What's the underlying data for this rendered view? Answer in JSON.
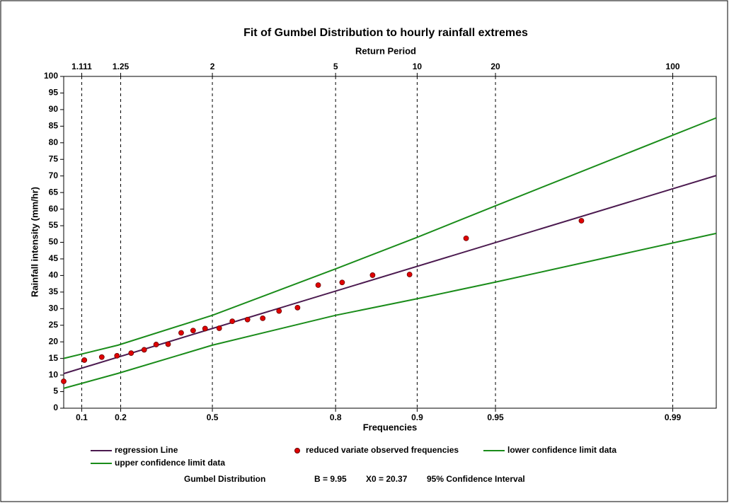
{
  "chart_data": {
    "type": "line",
    "title": "Fit of Gumbel Distribution to hourly rainfall extremes",
    "x2_label": "Return Period",
    "x_label": "Frequencies",
    "y_label": "Rainfall intensity (mm/hr)",
    "xlim": [
      -1,
      5
    ],
    "ylim": [
      0,
      100
    ],
    "yticks": [
      0,
      5,
      10,
      15,
      20,
      25,
      30,
      35,
      40,
      45,
      50,
      55,
      60,
      65,
      70,
      75,
      80,
      85,
      90,
      95,
      100
    ],
    "xticks": [
      {
        "value": -0.834,
        "label": "0.1"
      },
      {
        "value": -0.476,
        "label": "0.2"
      },
      {
        "value": 0.367,
        "label": "0.5"
      },
      {
        "value": 1.5,
        "label": "0.8"
      },
      {
        "value": 2.25,
        "label": "0.9"
      },
      {
        "value": 2.97,
        "label": "0.95"
      },
      {
        "value": 4.6,
        "label": "0.99"
      }
    ],
    "x2ticks": [
      {
        "value": -0.834,
        "label": "1.111"
      },
      {
        "value": -0.476,
        "label": "1.25"
      },
      {
        "value": 0.367,
        "label": "2"
      },
      {
        "value": 1.5,
        "label": "5"
      },
      {
        "value": 2.25,
        "label": "10"
      },
      {
        "value": 2.97,
        "label": "20"
      },
      {
        "value": 4.6,
        "label": "100"
      }
    ],
    "grid": true,
    "series": [
      {
        "name": "regression Line",
        "type": "line",
        "color": "#4b1a4f",
        "x": [
          -1,
          5
        ],
        "values": [
          10.42,
          70.12
        ]
      },
      {
        "name": "reduced variate observed frequencies",
        "type": "scatter",
        "color": "#e00000",
        "x": [
          -1.0,
          -0.81,
          -0.65,
          -0.51,
          -0.38,
          -0.26,
          -0.15,
          -0.04,
          0.08,
          0.19,
          0.3,
          0.43,
          0.55,
          0.69,
          0.83,
          0.98,
          1.15,
          1.34,
          1.56,
          1.84,
          2.18,
          2.7,
          3.76
        ],
        "values": [
          8.1,
          14.5,
          15.4,
          15.8,
          16.6,
          17.6,
          19.2,
          19.3,
          22.7,
          23.4,
          24.0,
          24.1,
          26.2,
          26.7,
          27.1,
          29.3,
          30.3,
          37.1,
          37.9,
          40.1,
          40.3,
          51.2,
          56.5
        ]
      },
      {
        "name": "lower confidence limit data",
        "type": "line",
        "color": "#1a8c1a",
        "x": [
          -1,
          -0.5,
          0.367,
          1.5,
          2.25,
          2.97,
          5
        ],
        "values": [
          6,
          10.5,
          19,
          28,
          33,
          38,
          52.7
        ]
      },
      {
        "name": "upper confidence limit data",
        "type": "line",
        "color": "#1a8c1a",
        "x": [
          -1,
          -0.5,
          0.367,
          1.5,
          2.25,
          2.97,
          5
        ],
        "values": [
          15,
          19,
          28,
          42,
          51.5,
          61,
          87.5
        ]
      }
    ],
    "footer": [
      "Gumbel Distribution",
      "B = 9.95",
      "X0 = 20.37",
      "95% Confidence Interval"
    ]
  }
}
